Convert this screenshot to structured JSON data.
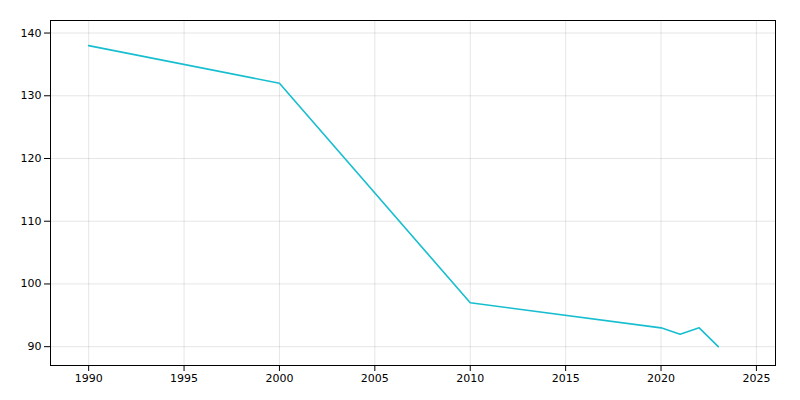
{
  "chart_data": {
    "type": "line",
    "x": [
      1990,
      2000,
      2010,
      2020,
      2021,
      2022,
      2023
    ],
    "values": [
      138,
      132,
      97,
      93,
      92,
      93,
      90
    ],
    "color": "#17becf",
    "xlim": [
      1988,
      2026
    ],
    "ylim": [
      87,
      142
    ],
    "xticks": [
      1990,
      1995,
      2000,
      2005,
      2010,
      2015,
      2020,
      2025
    ],
    "yticks": [
      90,
      100,
      110,
      120,
      130,
      140
    ],
    "grid": true
  }
}
